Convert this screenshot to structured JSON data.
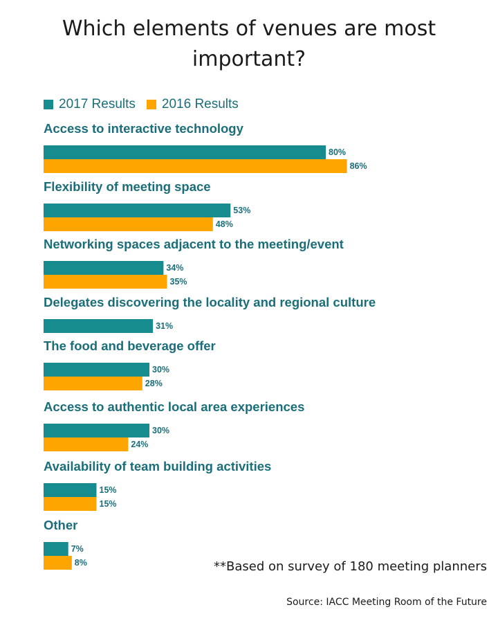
{
  "chart_data": {
    "type": "bar",
    "orientation": "horizontal",
    "title": "Which elements of venues are most important?",
    "categories": [
      "Access to interactive technology",
      "Flexibility of meeting space",
      "Networking spaces adjacent to the meeting/event",
      "Delegates discovering the locality and regional culture",
      "The food and beverage offer",
      "Access to authentic local area experiences",
      "Availability of team building activities",
      "Other"
    ],
    "series": [
      {
        "name": "2017 Results",
        "color": "#168c8e",
        "values": [
          80,
          53,
          34,
          31,
          30,
          30,
          15,
          7
        ]
      },
      {
        "name": "2016 Results",
        "color": "#ffa500",
        "values": [
          86,
          48,
          35,
          null,
          28,
          24,
          15,
          8
        ]
      }
    ],
    "value_suffix": "%",
    "xlim": [
      0,
      100
    ],
    "legend_position": "top-left",
    "grid": false,
    "note": "**Based on survey of 180 meeting planners",
    "source": "Source: IACC Meeting Room of the Future"
  }
}
